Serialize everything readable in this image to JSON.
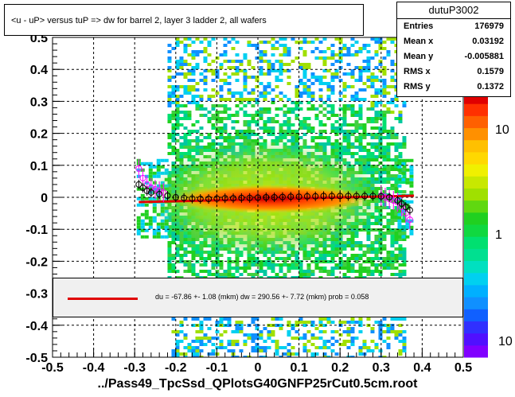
{
  "title": "<u - uP>      versus  tuP =>  dw for barrel 2, layer 3 ladder 2, all wafers",
  "stats": {
    "name": "dutuP3002",
    "rows": [
      {
        "label": "Entries",
        "value": "176979"
      },
      {
        "label": "Mean x",
        "value": "0.03192"
      },
      {
        "label": "Mean y",
        "value": "-0.005881"
      },
      {
        "label": "RMS x",
        "value": "0.1579"
      },
      {
        "label": "RMS y",
        "value": "0.1372"
      }
    ]
  },
  "fit_text": "du =  -67.86 +-  1.08 (mkm) dw =  290.56 +-  7.72 (mkm) prob = 0.058",
  "footer": "../Pass49_TpcSsd_QPlotsG40GNFP25rCut0.5cm.root",
  "chart_data": {
    "type": "heatmap",
    "xlim": [
      -0.5,
      0.5
    ],
    "ylim": [
      -0.5,
      0.5
    ],
    "x_ticks": [
      "-0.5",
      "-0.4",
      "-0.3",
      "-0.2",
      "-0.1",
      "0",
      "0.1",
      "0.2",
      "0.3",
      "0.4",
      "0.5"
    ],
    "y_ticks": [
      "-0.5",
      "-0.4",
      "-0.3",
      "-0.2",
      "-0.1",
      "0",
      "0.1",
      "0.2",
      "0.3",
      "0.4",
      "0.5"
    ],
    "grid": true,
    "z_scale": "log",
    "z_ticks": [
      "10",
      "1",
      "10"
    ],
    "colors": {
      "fit_line": "#e00000",
      "profile_black": "#000000",
      "profile_magenta": "#ff00ff"
    },
    "fit_line": {
      "x": [
        -0.29,
        0.38
      ],
      "y": [
        -0.015,
        0.005
      ]
    },
    "profile_black": {
      "x": [
        -0.29,
        -0.28,
        -0.27,
        -0.26,
        -0.24,
        -0.22,
        -0.2,
        -0.18,
        -0.16,
        -0.14,
        -0.12,
        -0.1,
        -0.08,
        -0.06,
        -0.04,
        -0.02,
        0.0,
        0.02,
        0.04,
        0.06,
        0.08,
        0.1,
        0.12,
        0.14,
        0.16,
        0.18,
        0.2,
        0.22,
        0.24,
        0.26,
        0.28,
        0.3,
        0.32,
        0.34,
        0.35,
        0.36,
        0.37
      ],
      "y": [
        0.04,
        0.03,
        0.02,
        0.015,
        0.01,
        0.005,
        0.0,
        -0.002,
        -0.004,
        -0.005,
        -0.005,
        -0.004,
        -0.003,
        -0.003,
        -0.002,
        -0.002,
        -0.001,
        0.0,
        0.0,
        0.001,
        0.002,
        0.002,
        0.003,
        0.003,
        0.004,
        0.004,
        0.004,
        0.004,
        0.004,
        0.004,
        0.004,
        0.003,
        0.0,
        -0.01,
        -0.02,
        -0.03,
        -0.04
      ]
    },
    "profile_magenta": {
      "x": [
        -0.29,
        -0.28,
        -0.27,
        -0.26,
        -0.25,
        -0.24,
        -0.23,
        0.3,
        0.31,
        0.32,
        0.33,
        0.34,
        0.35,
        0.36,
        0.37
      ],
      "y": [
        0.09,
        0.06,
        0.04,
        0.03,
        0.025,
        0.02,
        0.015,
        0.005,
        0.0,
        -0.005,
        -0.01,
        -0.015,
        -0.03,
        -0.05,
        -0.07
      ]
    }
  }
}
